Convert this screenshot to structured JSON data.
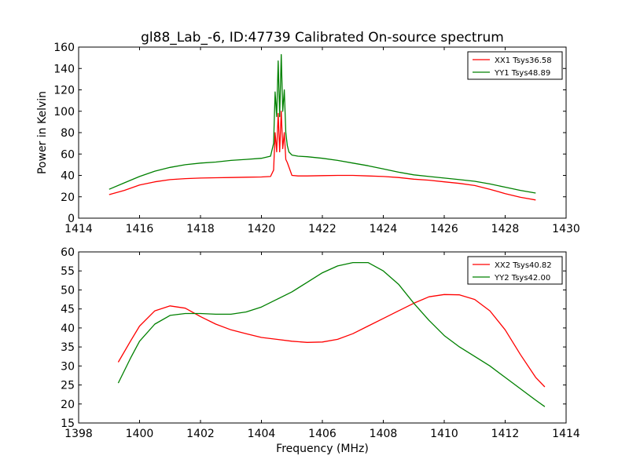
{
  "figure": {
    "title": "gl88_Lab_-6, ID:47739 Calibrated On-source spectrum"
  },
  "chart_data": [
    {
      "type": "line",
      "title": "gl88_Lab_-6, ID:47739 Calibrated On-source spectrum",
      "xlabel": "",
      "ylabel": "Power in Kelvin",
      "xlim": [
        1414,
        1430
      ],
      "ylim": [
        0,
        160
      ],
      "xticks": [
        "1414",
        "1416",
        "1418",
        "1420",
        "1422",
        "1424",
        "1426",
        "1428",
        "1430"
      ],
      "yticks": [
        "0",
        "20",
        "40",
        "60",
        "80",
        "100",
        "120",
        "140",
        "160"
      ],
      "grid": false,
      "legend_position": "top-right",
      "series": [
        {
          "name": "XX1 Tsys36.58",
          "color": "#ff0000",
          "x": [
            1415.0,
            1415.5,
            1416.0,
            1416.5,
            1417.0,
            1417.5,
            1418.0,
            1418.5,
            1419.0,
            1419.5,
            1420.0,
            1420.3,
            1420.4,
            1420.45,
            1420.5,
            1420.55,
            1420.6,
            1420.65,
            1420.7,
            1420.75,
            1420.8,
            1420.85,
            1420.9,
            1421.0,
            1421.2,
            1421.5,
            1422.0,
            1422.5,
            1423.0,
            1423.5,
            1424.0,
            1424.5,
            1425.0,
            1425.5,
            1426.0,
            1426.5,
            1427.0,
            1427.5,
            1428.0,
            1428.5,
            1429.0
          ],
          "y": [
            22,
            26,
            31,
            34,
            36,
            37,
            37.5,
            37.8,
            38,
            38.3,
            38.5,
            39,
            45,
            80,
            62,
            98,
            62,
            100,
            65,
            80,
            55,
            52,
            48,
            40,
            39.5,
            39.5,
            39.8,
            40,
            40,
            39.5,
            39,
            38,
            36.5,
            35.5,
            34,
            32.5,
            30.5,
            27,
            23,
            19.5,
            17
          ]
        },
        {
          "name": "YY1 Tsys48.89",
          "color": "#008000",
          "x": [
            1415.0,
            1415.5,
            1416.0,
            1416.5,
            1417.0,
            1417.5,
            1418.0,
            1418.5,
            1419.0,
            1419.5,
            1420.0,
            1420.3,
            1420.4,
            1420.45,
            1420.5,
            1420.55,
            1420.6,
            1420.65,
            1420.7,
            1420.75,
            1420.8,
            1420.85,
            1420.9,
            1421.0,
            1421.2,
            1421.5,
            1422.0,
            1422.5,
            1423.0,
            1423.5,
            1424.0,
            1424.5,
            1425.0,
            1425.5,
            1426.0,
            1426.5,
            1427.0,
            1427.5,
            1428.0,
            1428.5,
            1429.0
          ],
          "y": [
            27,
            33,
            39,
            44,
            47.5,
            50,
            51.5,
            52.5,
            54,
            55,
            56,
            58,
            70,
            118,
            95,
            147,
            95,
            153,
            100,
            120,
            80,
            68,
            62,
            59,
            58,
            57.5,
            56,
            54,
            51.5,
            49,
            46,
            43,
            40.5,
            39,
            37.5,
            36,
            34.5,
            32,
            29,
            26,
            23.5
          ]
        }
      ]
    },
    {
      "type": "line",
      "title": "",
      "xlabel": "Frequency (MHz)",
      "ylabel": "",
      "xlim": [
        1398,
        1414
      ],
      "ylim": [
        15,
        60
      ],
      "xticks": [
        "1398",
        "1400",
        "1402",
        "1404",
        "1406",
        "1408",
        "1410",
        "1412",
        "1414"
      ],
      "yticks": [
        "15",
        "20",
        "25",
        "30",
        "35",
        "40",
        "45",
        "50",
        "55",
        "60"
      ],
      "grid": false,
      "legend_position": "top-right",
      "series": [
        {
          "name": "XX2 Tsys40.82",
          "color": "#ff0000",
          "x": [
            1399.3,
            1399.7,
            1400.0,
            1400.5,
            1401.0,
            1401.5,
            1402.0,
            1402.5,
            1403.0,
            1403.5,
            1404.0,
            1404.5,
            1405.0,
            1405.5,
            1406.0,
            1406.5,
            1407.0,
            1407.5,
            1408.0,
            1408.5,
            1409.0,
            1409.5,
            1410.0,
            1410.5,
            1411.0,
            1411.5,
            1412.0,
            1412.5,
            1413.0,
            1413.3
          ],
          "y": [
            31,
            36.5,
            40.5,
            44.5,
            45.8,
            45.2,
            43,
            41,
            39.5,
            38.5,
            37.5,
            37,
            36.5,
            36.2,
            36.3,
            37,
            38.5,
            40.5,
            42.5,
            44.5,
            46.5,
            48.2,
            48.8,
            48.7,
            47.5,
            44.5,
            39.5,
            33,
            27,
            24.5
          ]
        },
        {
          "name": "YY2 Tsys42.00",
          "color": "#008000",
          "x": [
            1399.3,
            1399.7,
            1400.0,
            1400.5,
            1401.0,
            1401.5,
            1402.0,
            1402.5,
            1403.0,
            1403.5,
            1404.0,
            1404.5,
            1405.0,
            1405.5,
            1406.0,
            1406.5,
            1407.0,
            1407.5,
            1408.0,
            1408.5,
            1409.0,
            1409.5,
            1410.0,
            1410.5,
            1411.0,
            1411.5,
            1412.0,
            1412.5,
            1413.0,
            1413.3
          ],
          "y": [
            25.5,
            32,
            36.5,
            41,
            43.3,
            43.8,
            43.8,
            43.6,
            43.6,
            44.2,
            45.5,
            47.5,
            49.5,
            52,
            54.5,
            56.3,
            57.2,
            57.2,
            55,
            51.5,
            46.5,
            42,
            38,
            35,
            32.5,
            30,
            27,
            24,
            21,
            19.3
          ]
        }
      ]
    }
  ]
}
